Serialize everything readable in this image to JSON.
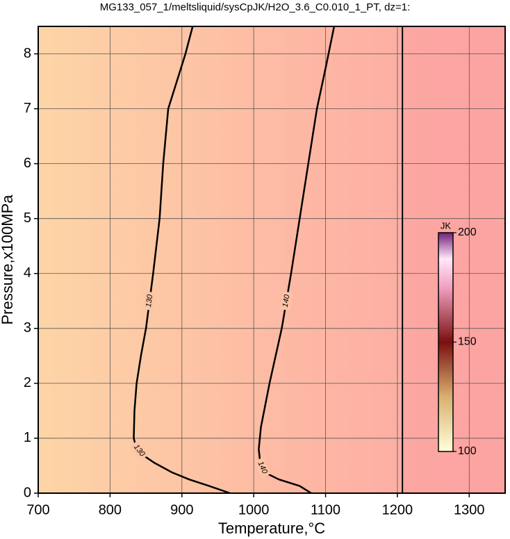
{
  "chart_data": {
    "type": "contour",
    "title": "MG133_057_1/meltsliquid/sysCpJK/H2O_3.6_C0.010_1_PT, dz=1:",
    "x_label": "Temperature,°C",
    "y_label": "Pressure,x100MPa",
    "xlim": [
      700,
      1350
    ],
    "ylim": [
      0,
      8.5
    ],
    "xticks": [
      700,
      800,
      900,
      1000,
      1100,
      1200,
      1300
    ],
    "yticks": [
      0,
      1,
      2,
      3,
      4,
      5,
      6,
      7,
      8
    ],
    "grid": true,
    "contours": [
      {
        "level": 130,
        "x": [
          915,
          905,
          893,
          881,
          874,
          869,
          860,
          850,
          843,
          837,
          834,
          833,
          836,
          845,
          862,
          886,
          910,
          938,
          967
        ],
        "y": [
          8.5,
          8,
          7.5,
          7,
          6,
          5,
          4,
          3,
          2.5,
          2,
          1.5,
          1,
          0.85,
          0.7,
          0.55,
          0.38,
          0.25,
          0.13,
          0
        ]
      },
      {
        "level": 140,
        "x": [
          1112,
          1101,
          1088,
          1076,
          1064,
          1052,
          1039,
          1022,
          1010,
          1007,
          1009,
          1015,
          1035,
          1064,
          1080
        ],
        "y": [
          8.5,
          7.8,
          7,
          6,
          5,
          4,
          3,
          2,
          1.2,
          0.8,
          0.55,
          0.38,
          0.25,
          0.13,
          0
        ]
      }
    ],
    "boundary_x": 1207,
    "colorbar": {
      "label": "JK",
      "lim": [
        100,
        200
      ],
      "ticks": [
        100,
        150,
        200
      ]
    }
  }
}
